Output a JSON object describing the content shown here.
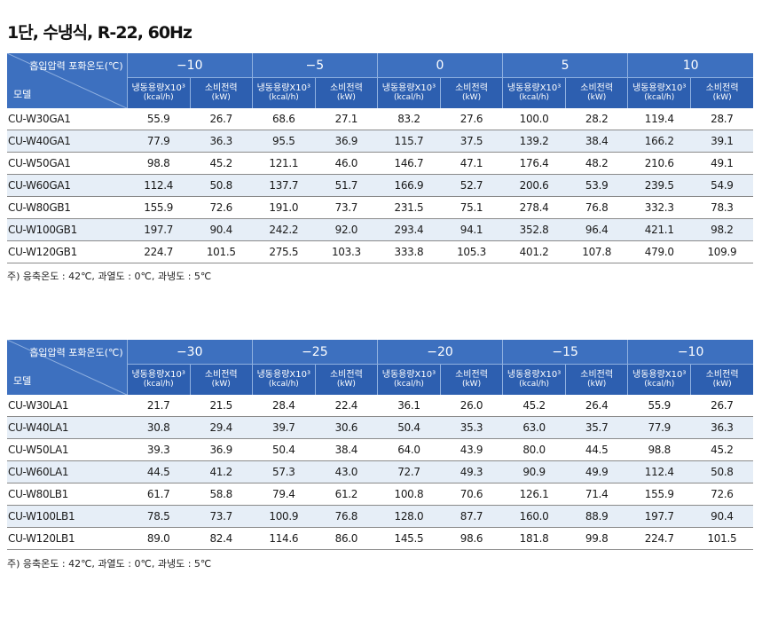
{
  "title": "1단, 수냉식, R-22, 60Hz",
  "corner_top": "흡입압력 포화온도(℃)",
  "corner_bottom": "모델",
  "sub_cap": "냉동용량X10³",
  "sub_cap_unit": "(kcal/h)",
  "sub_pow": "소비전력",
  "sub_pow_unit": "(kW)",
  "note": "주) 응축온도 : 42℃,  과열도 : 0℃, 과냉도 : 5℃",
  "table1": {
    "temps": [
      "−10",
      "−5",
      "0",
      "5",
      "10"
    ],
    "rows": [
      {
        "model": "CU-W30GA1",
        "values": [
          "55.9",
          "26.7",
          "68.6",
          "27.1",
          "83.2",
          "27.6",
          "100.0",
          "28.2",
          "119.4",
          "28.7"
        ]
      },
      {
        "model": "CU-W40GA1",
        "values": [
          "77.9",
          "36.3",
          "95.5",
          "36.9",
          "115.7",
          "37.5",
          "139.2",
          "38.4",
          "166.2",
          "39.1"
        ]
      },
      {
        "model": "CU-W50GA1",
        "values": [
          "98.8",
          "45.2",
          "121.1",
          "46.0",
          "146.7",
          "47.1",
          "176.4",
          "48.2",
          "210.6",
          "49.1"
        ]
      },
      {
        "model": "CU-W60GA1",
        "values": [
          "112.4",
          "50.8",
          "137.7",
          "51.7",
          "166.9",
          "52.7",
          "200.6",
          "53.9",
          "239.5",
          "54.9"
        ]
      },
      {
        "model": "CU-W80GB1",
        "values": [
          "155.9",
          "72.6",
          "191.0",
          "73.7",
          "231.5",
          "75.1",
          "278.4",
          "76.8",
          "332.3",
          "78.3"
        ]
      },
      {
        "model": "CU-W100GB1",
        "values": [
          "197.7",
          "90.4",
          "242.2",
          "92.0",
          "293.4",
          "94.1",
          "352.8",
          "96.4",
          "421.1",
          "98.2"
        ]
      },
      {
        "model": "CU-W120GB1",
        "values": [
          "224.7",
          "101.5",
          "275.5",
          "103.3",
          "333.8",
          "105.3",
          "401.2",
          "107.8",
          "479.0",
          "109.9"
        ]
      }
    ]
  },
  "table2": {
    "temps": [
      "−30",
      "−25",
      "−20",
      "−15",
      "−10"
    ],
    "rows": [
      {
        "model": "CU-W30LA1",
        "values": [
          "21.7",
          "21.5",
          "28.4",
          "22.4",
          "36.1",
          "26.0",
          "45.2",
          "26.4",
          "55.9",
          "26.7"
        ]
      },
      {
        "model": "CU-W40LA1",
        "values": [
          "30.8",
          "29.4",
          "39.7",
          "30.6",
          "50.4",
          "35.3",
          "63.0",
          "35.7",
          "77.9",
          "36.3"
        ]
      },
      {
        "model": "CU-W50LA1",
        "values": [
          "39.3",
          "36.9",
          "50.4",
          "38.4",
          "64.0",
          "43.9",
          "80.0",
          "44.5",
          "98.8",
          "45.2"
        ]
      },
      {
        "model": "CU-W60LA1",
        "values": [
          "44.5",
          "41.2",
          "57.3",
          "43.0",
          "72.7",
          "49.3",
          "90.9",
          "49.9",
          "112.4",
          "50.8"
        ]
      },
      {
        "model": "CU-W80LB1",
        "values": [
          "61.7",
          "58.8",
          "79.4",
          "61.2",
          "100.8",
          "70.6",
          "126.1",
          "71.4",
          "155.9",
          "72.6"
        ]
      },
      {
        "model": "CU-W100LB1",
        "values": [
          "78.5",
          "73.7",
          "100.9",
          "76.8",
          "128.0",
          "87.7",
          "160.0",
          "88.9",
          "197.7",
          "90.4"
        ]
      },
      {
        "model": "CU-W120LB1",
        "values": [
          "89.0",
          "82.4",
          "114.6",
          "86.0",
          "145.5",
          "98.6",
          "181.8",
          "99.8",
          "224.7",
          "101.5"
        ]
      }
    ]
  }
}
